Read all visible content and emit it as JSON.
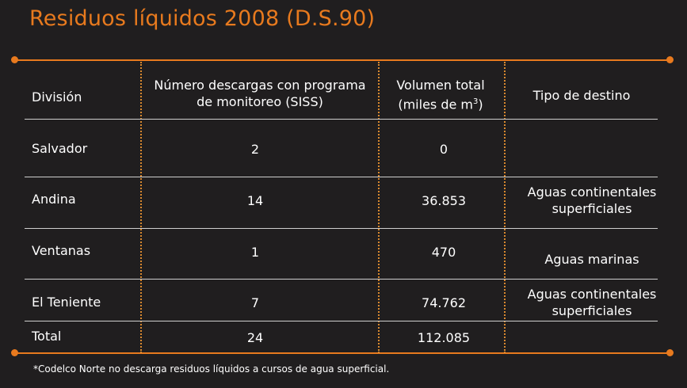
{
  "title": "Residuos líquidos 2008 (D.S.90)",
  "accent_color": "#e87a1e",
  "table": {
    "headers": {
      "division": "División",
      "descargas_line1": "Número descargas con programa",
      "descargas_line2": "de monitoreo (SISS)",
      "volumen_line1": "Volumen total",
      "volumen_line2_pre": "(miles de m",
      "volumen_sup": "3",
      "volumen_line2_post": ")",
      "destino": "Tipo de destino"
    },
    "rows": [
      {
        "division": "Salvador",
        "descargas": "2",
        "volumen": "0",
        "destino_line1": "",
        "destino_line2": ""
      },
      {
        "division": "Andina",
        "descargas": "14",
        "volumen": "36.853",
        "destino_line1": "Aguas continentales",
        "destino_line2": "superficiales"
      },
      {
        "division": "Ventanas",
        "descargas": "1",
        "volumen": "470",
        "destino_line1": "Aguas marinas",
        "destino_line2": ""
      },
      {
        "division": "El Teniente",
        "descargas": "7",
        "volumen": "74.762",
        "destino_line1": "Aguas continentales",
        "destino_line2": "superficiales"
      }
    ],
    "total": {
      "label": "Total",
      "descargas": "24",
      "volumen": "112.085"
    }
  },
  "footnote": "*Codelco Norte no descarga residuos líquidos a cursos de agua superficial."
}
